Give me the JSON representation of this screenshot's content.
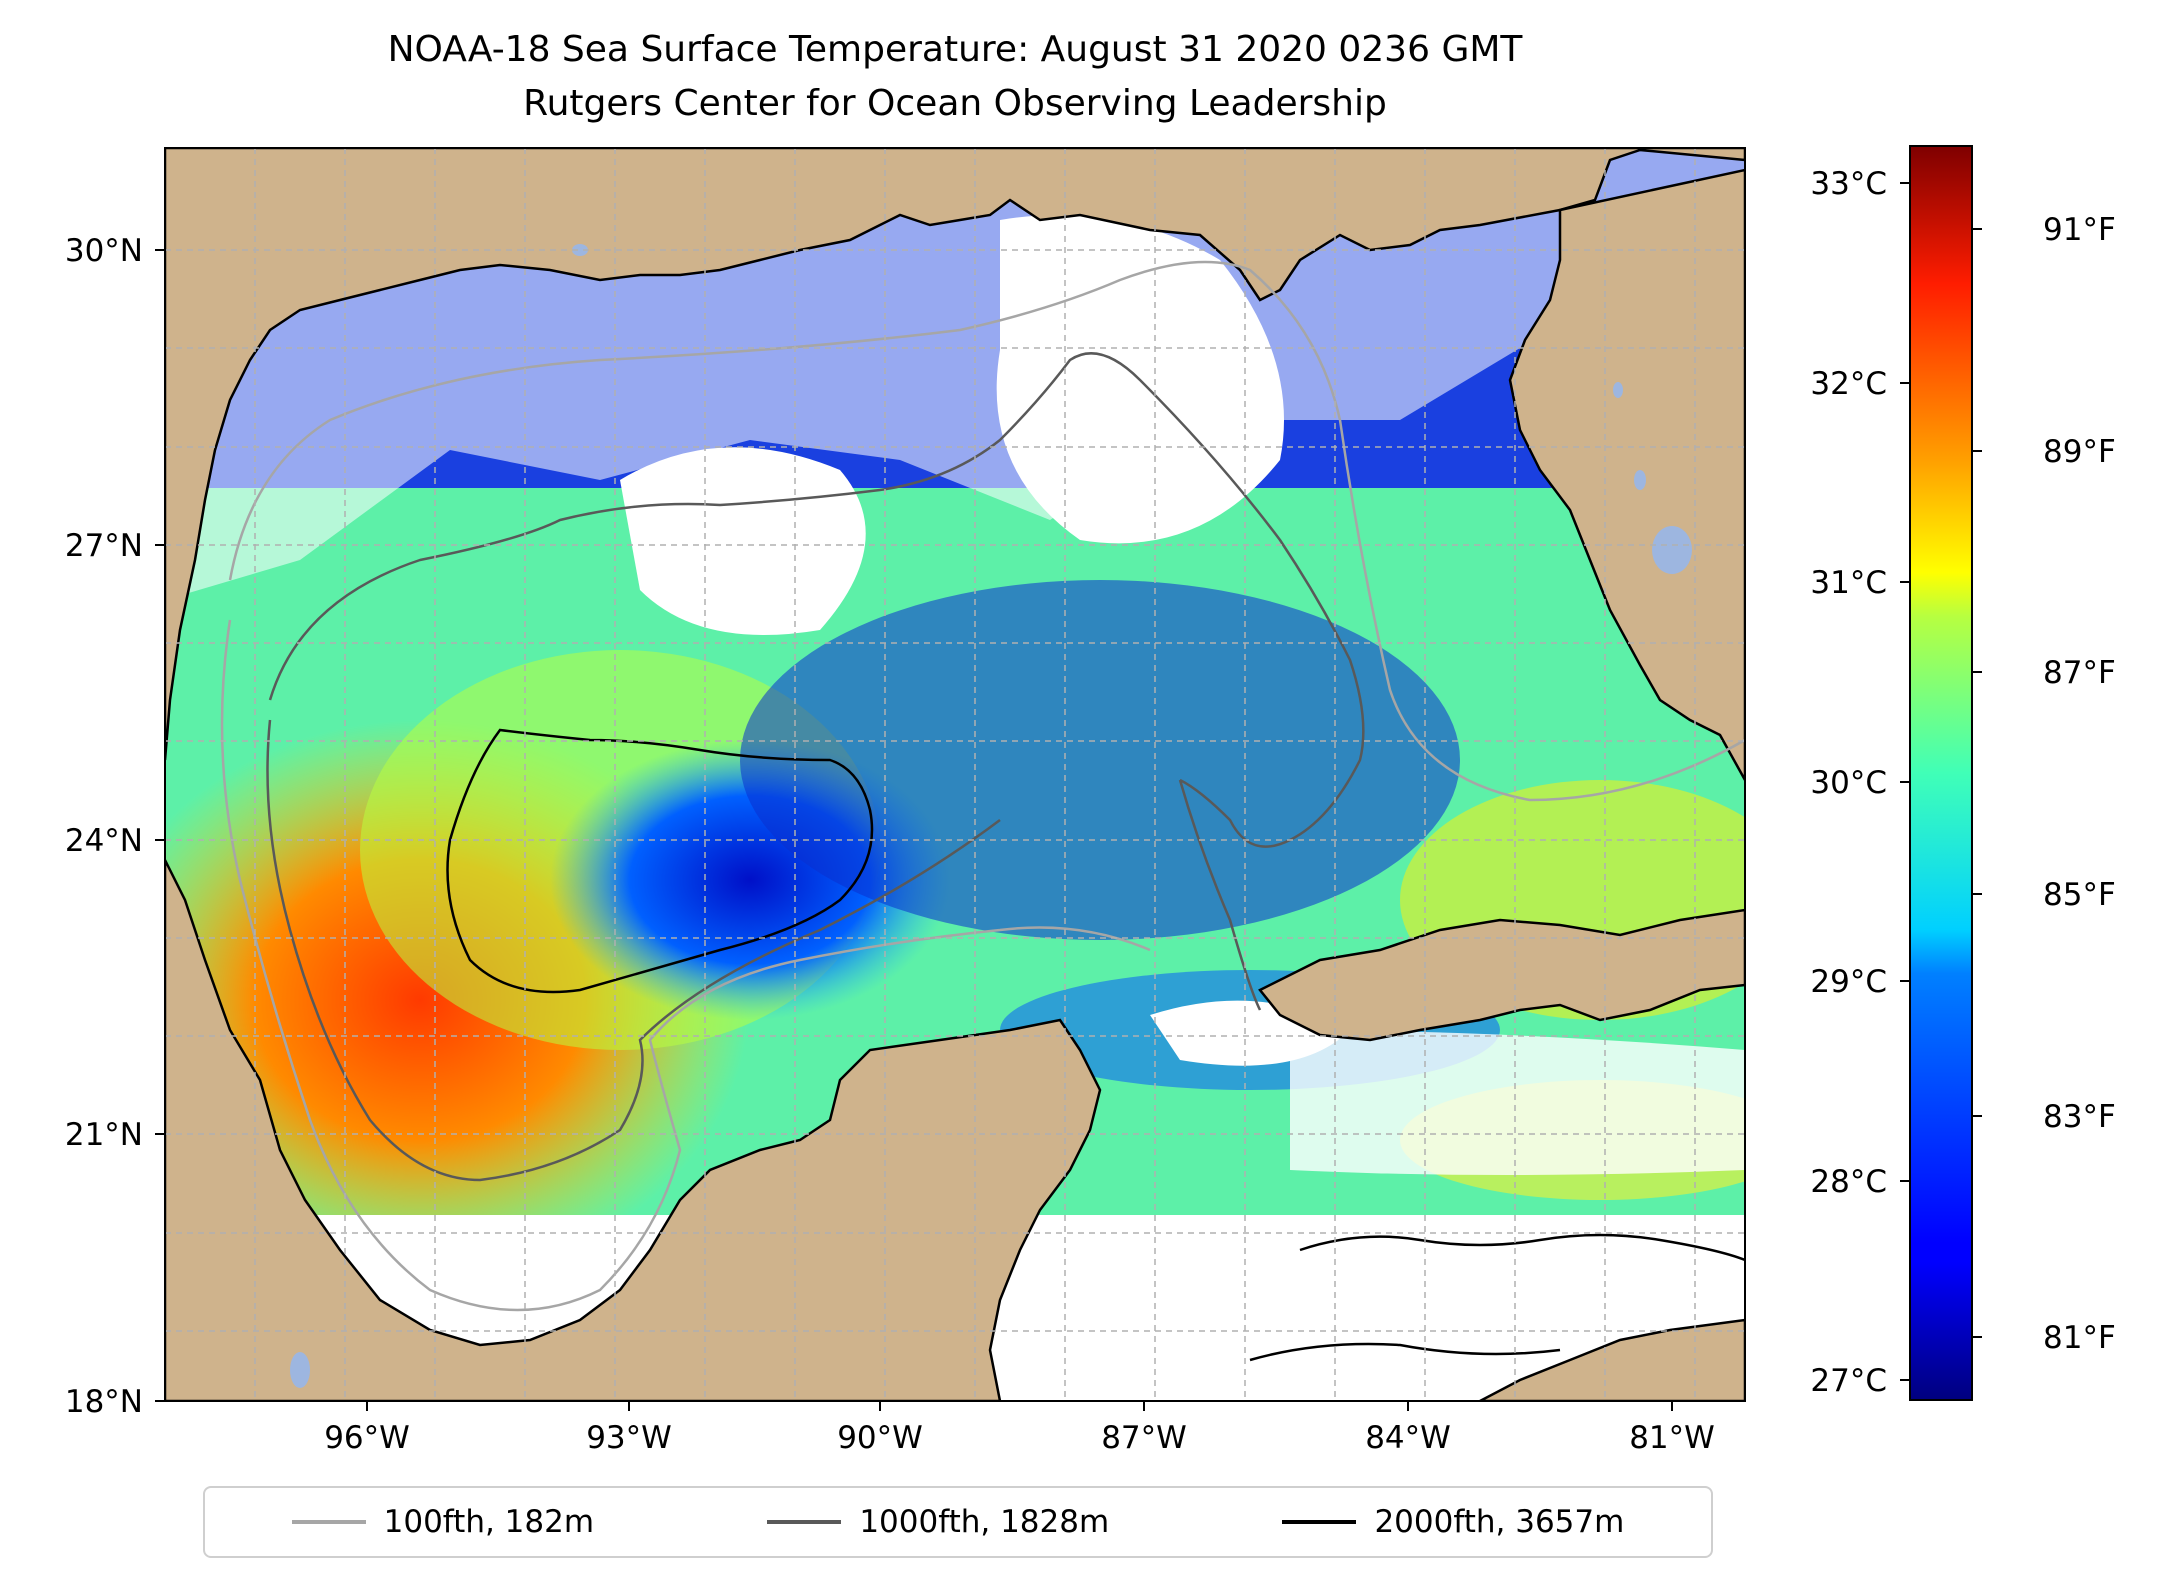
{
  "title": "NOAA-18 Sea Surface Temperature: August 31 2020 0236 GMT",
  "subtitle": "Rutgers Center for Ocean Observing Leadership",
  "map": {
    "lon_range": [
      -98.0,
      -80.5
    ],
    "lat_range": [
      18.0,
      31.0
    ],
    "lon_ticks": [
      {
        "value": -96,
        "label": "96°W"
      },
      {
        "value": -93,
        "label": "93°W"
      },
      {
        "value": -90,
        "label": "90°W"
      },
      {
        "value": -87,
        "label": "87°W"
      },
      {
        "value": -84,
        "label": "84°W"
      },
      {
        "value": -81,
        "label": "81°W"
      }
    ],
    "lat_ticks": [
      {
        "value": 30,
        "label": "30°N"
      },
      {
        "value": 27,
        "label": "27°N"
      },
      {
        "value": 24,
        "label": "24°N"
      },
      {
        "value": 21,
        "label": "21°N"
      },
      {
        "value": 18,
        "label": "18°N"
      }
    ],
    "colors": {
      "land": "#cfb38c",
      "lake": "#9db6e0",
      "cloud": "#ffffff",
      "grid": "#b0b0b0"
    }
  },
  "colorbar": {
    "colormap": "jet",
    "celsius_range": [
      26.9,
      33.2
    ],
    "celsius_ticks": [
      {
        "value": 33,
        "label": "33°C"
      },
      {
        "value": 32,
        "label": "32°C"
      },
      {
        "value": 31,
        "label": "31°C"
      },
      {
        "value": 30,
        "label": "30°C"
      },
      {
        "value": 29,
        "label": "29°C"
      },
      {
        "value": 28,
        "label": "28°C"
      },
      {
        "value": 27,
        "label": "27°C"
      }
    ],
    "fahrenheit_ticks": [
      {
        "value": 91,
        "label": "91°F"
      },
      {
        "value": 89,
        "label": "89°F"
      },
      {
        "value": 87,
        "label": "87°F"
      },
      {
        "value": 85,
        "label": "85°F"
      },
      {
        "value": 83,
        "label": "83°F"
      },
      {
        "value": 81,
        "label": "81°F"
      }
    ]
  },
  "legend": {
    "items": [
      {
        "label": "100fth, 182m",
        "color": "#a6a6a6"
      },
      {
        "label": "1000fth, 1828m",
        "color": "#595959"
      },
      {
        "label": "2000fth, 3657m",
        "color": "#000000"
      }
    ]
  }
}
